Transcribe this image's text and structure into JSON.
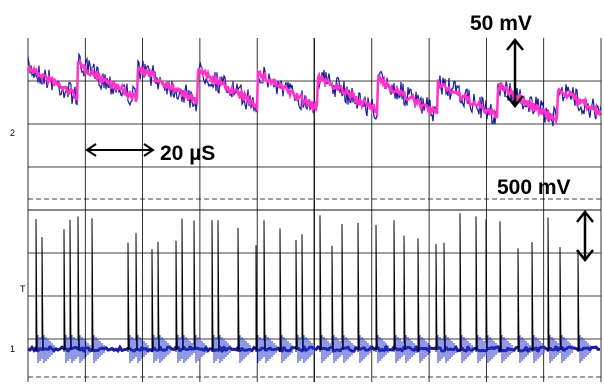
{
  "annotations": {
    "top_scale": "50 mV",
    "time_scale": "20 µS",
    "bottom_scale": "500 mV"
  },
  "markers": {
    "channel_2": "2",
    "trigger": "T",
    "channel_1": "1"
  }
}
